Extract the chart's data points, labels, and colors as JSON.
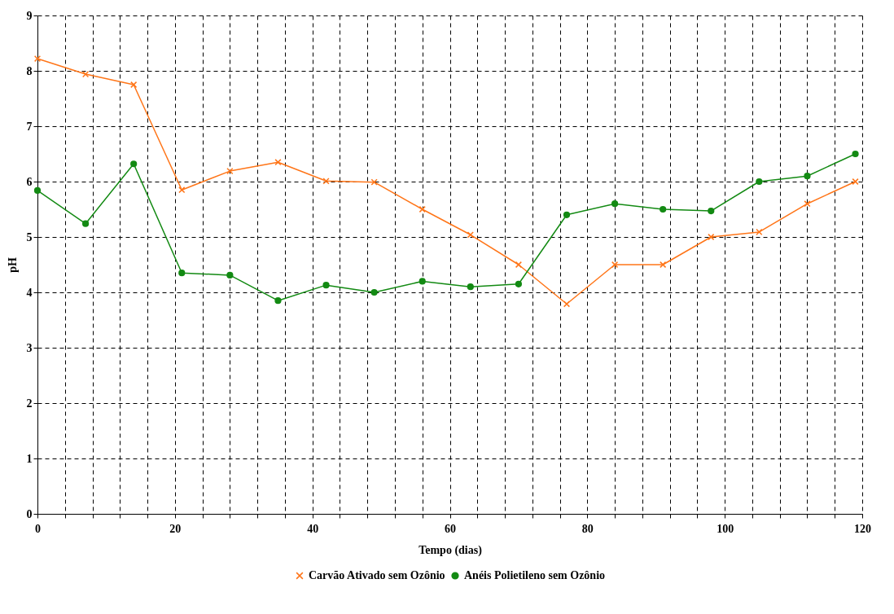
{
  "chart_data": {
    "type": "line",
    "xlabel": "Tempo (dias)",
    "ylabel": "pH",
    "x": [
      0,
      7,
      14,
      21,
      28,
      35,
      42,
      49,
      56,
      63,
      70,
      77,
      84,
      91,
      98,
      105,
      112,
      119
    ],
    "series": [
      {
        "name": "Carvão Ativado sem Ozônio",
        "color": "#ff7518",
        "marker": "cross",
        "values": [
          8.22,
          7.94,
          7.75,
          5.85,
          6.19,
          6.35,
          6.01,
          5.99,
          5.5,
          5.04,
          4.5,
          3.79,
          4.5,
          4.5,
          5.0,
          5.09,
          5.6,
          6.0
        ]
      },
      {
        "name": "Anéis Polietileno sem Ozônio",
        "color": "#138a13",
        "marker": "circle",
        "values": [
          5.84,
          5.24,
          6.32,
          4.35,
          4.31,
          3.85,
          4.13,
          4.0,
          4.2,
          4.1,
          4.15,
          5.4,
          5.6,
          5.5,
          5.47,
          6.0,
          6.1,
          6.5
        ]
      }
    ],
    "xlim": [
      0,
      120
    ],
    "xticks": [
      0,
      {
        "value": 4,
        "label": null
      },
      {
        "value": 8,
        "label": null
      },
      {
        "value": 12,
        "label": null
      },
      {
        "value": 16,
        "label": null
      },
      20,
      {
        "value": 24,
        "label": null
      },
      {
        "value": 28,
        "label": null
      },
      {
        "value": 32,
        "label": null
      },
      {
        "value": 36,
        "label": null
      },
      40,
      {
        "value": 44,
        "label": null
      },
      {
        "value": 48,
        "label": null
      },
      {
        "value": 52,
        "label": null
      },
      {
        "value": 56,
        "label": null
      },
      60,
      {
        "value": 64,
        "label": null
      },
      {
        "value": 68,
        "label": null
      },
      {
        "value": 72,
        "label": null
      },
      {
        "value": 76,
        "label": null
      },
      80,
      {
        "value": 84,
        "label": null
      },
      {
        "value": 88,
        "label": null
      },
      {
        "value": 92,
        "label": null
      },
      {
        "value": 96,
        "label": null
      },
      100,
      {
        "value": 104,
        "label": null
      },
      {
        "value": 108,
        "label": null
      },
      {
        "value": 112,
        "label": null
      },
      {
        "value": 116,
        "label": null
      },
      120
    ],
    "ylim": [
      0,
      9
    ],
    "yticks": [
      0,
      1,
      2,
      3,
      4,
      5,
      6,
      7,
      8,
      9
    ],
    "grid": true,
    "legend": "bottom",
    "line_style": "solid"
  }
}
